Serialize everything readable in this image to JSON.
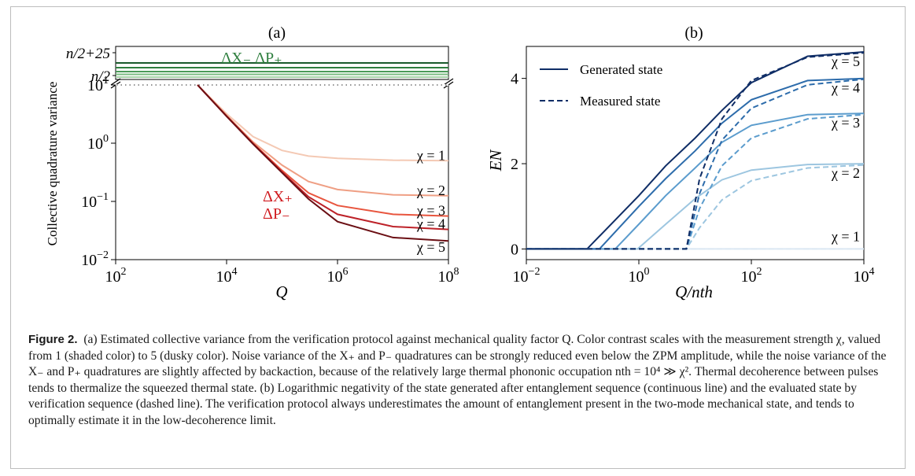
{
  "caption": {
    "label": "Figure 2.",
    "text": "(a) Estimated collective variance from the verification protocol against mechanical quality factor Q. Color contrast scales with the measurement strength χ, valued from 1 (shaded color) to 5 (dusky color). Noise variance of the X₊ and P₋ quadratures can be strongly reduced even below the ZPM amplitude, while the noise variance of the X₋ and P₊ quadratures are slightly affected by backaction, because of the relatively large thermal phononic occupation nth = 10⁴ ≫ χ². Thermal decoherence between pulses tends to thermalize the squeezed thermal state. (b) Logarithmic negativity of the state generated after entanglement sequence (continuous line) and the evaluated state by verification sequence (dashed line). The verification protocol always underestimates the amount of entanglement present in the two-mode mechanical state, and tends to optimally estimate it in the low-decoherence limit."
  },
  "chart_data": [
    {
      "panel": "(a)",
      "type": "line",
      "xlabel": "Q",
      "ylabel": "Collective quadrature variance",
      "x_scale": "log",
      "y_scale": "log (lower broken segment)",
      "xlim": [
        100,
        100000000
      ],
      "ylim": [
        0.01,
        10
      ],
      "x_tick_labels": [
        "10^2",
        "10^4",
        "10^6",
        "10^8"
      ],
      "y_tick_labels": [
        "10^-2",
        "10^-1",
        "10^0",
        "10^1"
      ],
      "upper_segment_tick_labels": [
        "n/2+25",
        "n/2"
      ],
      "upper_segment_label": "ΔX₋  ΔP₊",
      "upper_segment_colors": [
        "#1a5a2c",
        "#2f7f3f",
        "#4a9a58",
        "#78bb80",
        "#a8d4aa"
      ],
      "lower_series_label": [
        "ΔX₊",
        "ΔP₋"
      ],
      "series": [
        {
          "name": "χ = 1",
          "color": "#f4c9b4",
          "x": [
            3000,
            10000,
            30000,
            100000,
            300000,
            1000000,
            10000000,
            100000000
          ],
          "y": [
            10,
            3.2,
            1.3,
            0.75,
            0.6,
            0.55,
            0.51,
            0.5
          ]
        },
        {
          "name": "χ = 2",
          "color": "#ef9f84",
          "x": [
            3000,
            10000,
            30000,
            100000,
            300000,
            1000000,
            10000000,
            100000000
          ],
          "y": [
            10,
            3.0,
            1.05,
            0.42,
            0.22,
            0.16,
            0.13,
            0.125
          ]
        },
        {
          "name": "χ = 3",
          "color": "#e8553e",
          "x": [
            3000,
            10000,
            30000,
            100000,
            300000,
            1000000,
            10000000,
            100000000
          ],
          "y": [
            10,
            2.95,
            1.0,
            0.34,
            0.14,
            0.085,
            0.06,
            0.056
          ]
        },
        {
          "name": "χ = 4",
          "color": "#bd2229",
          "x": [
            3000,
            10000,
            30000,
            100000,
            300000,
            1000000,
            10000000,
            100000000
          ],
          "y": [
            10,
            2.9,
            0.98,
            0.32,
            0.12,
            0.06,
            0.037,
            0.033
          ]
        },
        {
          "name": "χ = 5",
          "color": "#6b0f14",
          "x": [
            3000,
            10000,
            30000,
            100000,
            300000,
            1000000,
            10000000,
            100000000
          ],
          "y": [
            10,
            2.9,
            0.97,
            0.31,
            0.11,
            0.045,
            0.024,
            0.021
          ]
        }
      ]
    },
    {
      "panel": "(b)",
      "type": "line",
      "xlabel": "Q/nth",
      "ylabel": "EN",
      "x_scale": "log",
      "xlim": [
        0.01,
        10000
      ],
      "ylim": [
        -0.25,
        4.75
      ],
      "x_tick_labels": [
        "10^-2",
        "10^0",
        "10^2",
        "10^4"
      ],
      "y_tick_labels": [
        "0",
        "2",
        "4"
      ],
      "legend": {
        "placement": "top-left",
        "entries": [
          "Generated state",
          "Measured state"
        ]
      },
      "series": [
        {
          "name": "χ = 1",
          "style": "solid",
          "color": "#dce8f3",
          "x": [
            0.01,
            10000
          ],
          "y": [
            0,
            0
          ]
        },
        {
          "name": "χ = 2",
          "style": "solid",
          "color": "#9dc6e0",
          "x": [
            0.01,
            0.95,
            3,
            10,
            30,
            100,
            1000,
            10000
          ],
          "y": [
            0,
            0,
            0.58,
            1.18,
            1.62,
            1.85,
            1.98,
            2.0
          ]
        },
        {
          "name": "χ = 3",
          "style": "solid",
          "color": "#5b9ccd",
          "x": [
            0.01,
            0.38,
            1,
            3,
            10,
            30,
            100,
            1000,
            10000
          ],
          "y": [
            0,
            0,
            0.58,
            1.25,
            1.9,
            2.5,
            2.9,
            3.15,
            3.18
          ]
        },
        {
          "name": "χ = 4",
          "style": "solid",
          "color": "#2d6cab",
          "x": [
            0.01,
            0.2,
            1,
            3,
            10,
            30,
            100,
            1000,
            10000
          ],
          "y": [
            0,
            0,
            1.0,
            1.65,
            2.3,
            2.95,
            3.5,
            3.95,
            4.0
          ]
        },
        {
          "name": "χ = 5",
          "style": "solid",
          "color": "#0f2d66",
          "x": [
            0.01,
            0.12,
            1,
            3,
            10,
            30,
            100,
            1000,
            10000
          ],
          "y": [
            0,
            0,
            1.25,
            1.95,
            2.6,
            3.25,
            3.9,
            4.52,
            4.62
          ]
        },
        {
          "name": "χ = 1 (measured)",
          "style": "dashed",
          "color": "#dce8f3",
          "x": [
            0.01,
            10000
          ],
          "y": [
            0,
            0
          ]
        },
        {
          "name": "χ = 2 (measured)",
          "style": "dashed",
          "color": "#9dc6e0",
          "x": [
            0.01,
            7,
            12,
            30,
            100,
            1000,
            10000
          ],
          "y": [
            0,
            0,
            0.5,
            1.15,
            1.6,
            1.9,
            1.97
          ]
        },
        {
          "name": "χ = 3 (measured)",
          "style": "dashed",
          "color": "#5b9ccd",
          "x": [
            0.01,
            7,
            12,
            30,
            100,
            1000,
            10000
          ],
          "y": [
            0,
            0,
            0.95,
            1.95,
            2.6,
            3.05,
            3.15
          ]
        },
        {
          "name": "χ = 4 (measured)",
          "style": "dashed",
          "color": "#2d6cab",
          "x": [
            0.01,
            7,
            12,
            30,
            100,
            1000,
            10000
          ],
          "y": [
            0,
            0,
            1.3,
            2.55,
            3.3,
            3.85,
            3.98
          ]
        },
        {
          "name": "χ = 5 (measured)",
          "style": "dashed",
          "color": "#0f2d66",
          "x": [
            0.01,
            7,
            12,
            30,
            100,
            1000,
            10000
          ],
          "y": [
            0,
            0,
            1.65,
            3.05,
            3.95,
            4.5,
            4.6
          ]
        }
      ],
      "series_labels": [
        "χ = 5",
        "χ = 4",
        "χ = 3",
        "χ = 2",
        "χ = 1"
      ]
    }
  ]
}
